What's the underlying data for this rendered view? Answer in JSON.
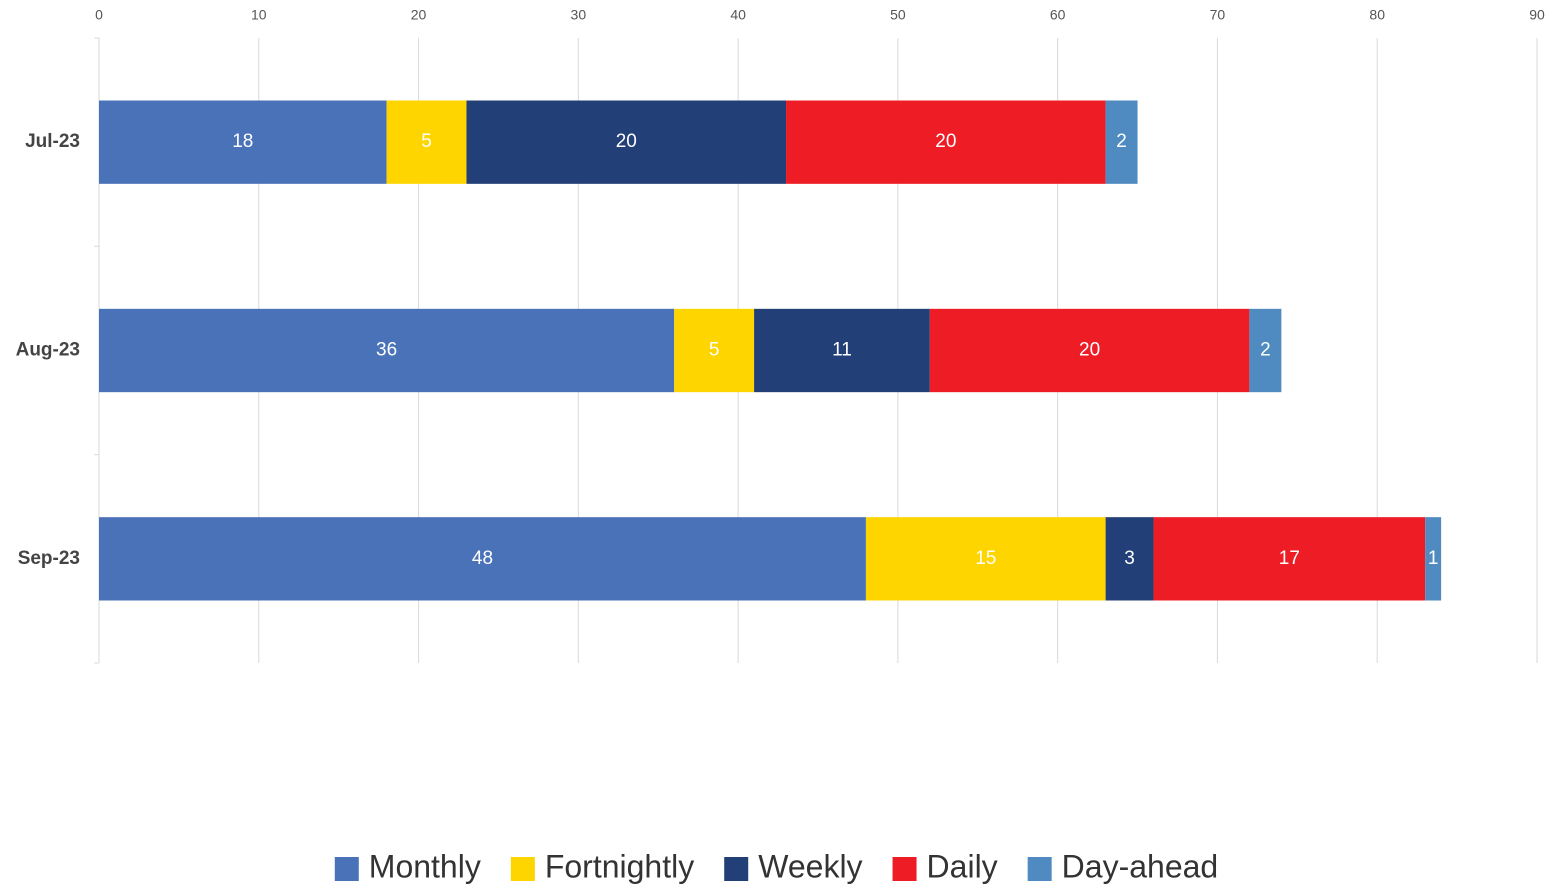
{
  "chart_data": {
    "type": "bar",
    "orientation": "horizontal",
    "stacked": true,
    "categories": [
      "Jul-23",
      "Aug-23",
      "Sep-23"
    ],
    "series": [
      {
        "name": "Monthly",
        "color": "#4a72b8",
        "values": [
          18,
          36,
          48
        ]
      },
      {
        "name": "Fortnightly",
        "color": "#ffd500",
        "values": [
          5,
          5,
          15
        ]
      },
      {
        "name": "Weekly",
        "color": "#223f77",
        "values": [
          20,
          11,
          3
        ]
      },
      {
        "name": "Daily",
        "color": "#ee1c25",
        "values": [
          20,
          20,
          17
        ]
      },
      {
        "name": "Day-ahead",
        "color": "#4f8bc0",
        "values": [
          2,
          2,
          1
        ]
      }
    ],
    "xlim": [
      0,
      90
    ],
    "xticks": [
      0,
      10,
      20,
      30,
      40,
      50,
      60,
      70,
      80,
      90
    ],
    "grid": true,
    "legend": "bottom"
  }
}
